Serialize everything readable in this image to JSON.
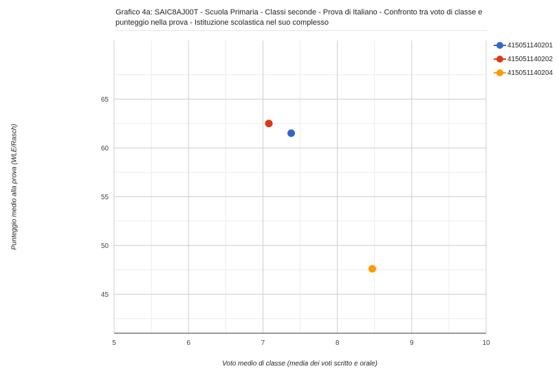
{
  "chart_data": {
    "type": "scatter",
    "title": "Grafico 4a: SAIC8AJ00T - Scuola Primaria - Classi seconde - Prova di Italiano - Confronto tra voto di classe e punteggio nella prova - Istituzione scolastica nel suo complesso",
    "xlabel": "Voto medio di classe (media dei voti scritto e orale)",
    "ylabel": "Punteggio medio alla prova (WLE/Rasch)",
    "xlim": [
      5,
      10
    ],
    "ylim": [
      41,
      71
    ],
    "x_ticks": [
      5,
      6,
      7,
      8,
      9,
      10
    ],
    "y_ticks": [
      45,
      50,
      55,
      60,
      65
    ],
    "grid": true,
    "legend_position": "top-right",
    "series": [
      {
        "name": "415051140201",
        "color": "#3366cc",
        "x": [
          7.38
        ],
        "y": [
          61.5
        ]
      },
      {
        "name": "415051140202",
        "color": "#dc3912",
        "x": [
          7.08
        ],
        "y": [
          62.5
        ]
      },
      {
        "name": "415051140204",
        "color": "#ff9900",
        "x": [
          8.47
        ],
        "y": [
          47.6
        ]
      }
    ]
  }
}
